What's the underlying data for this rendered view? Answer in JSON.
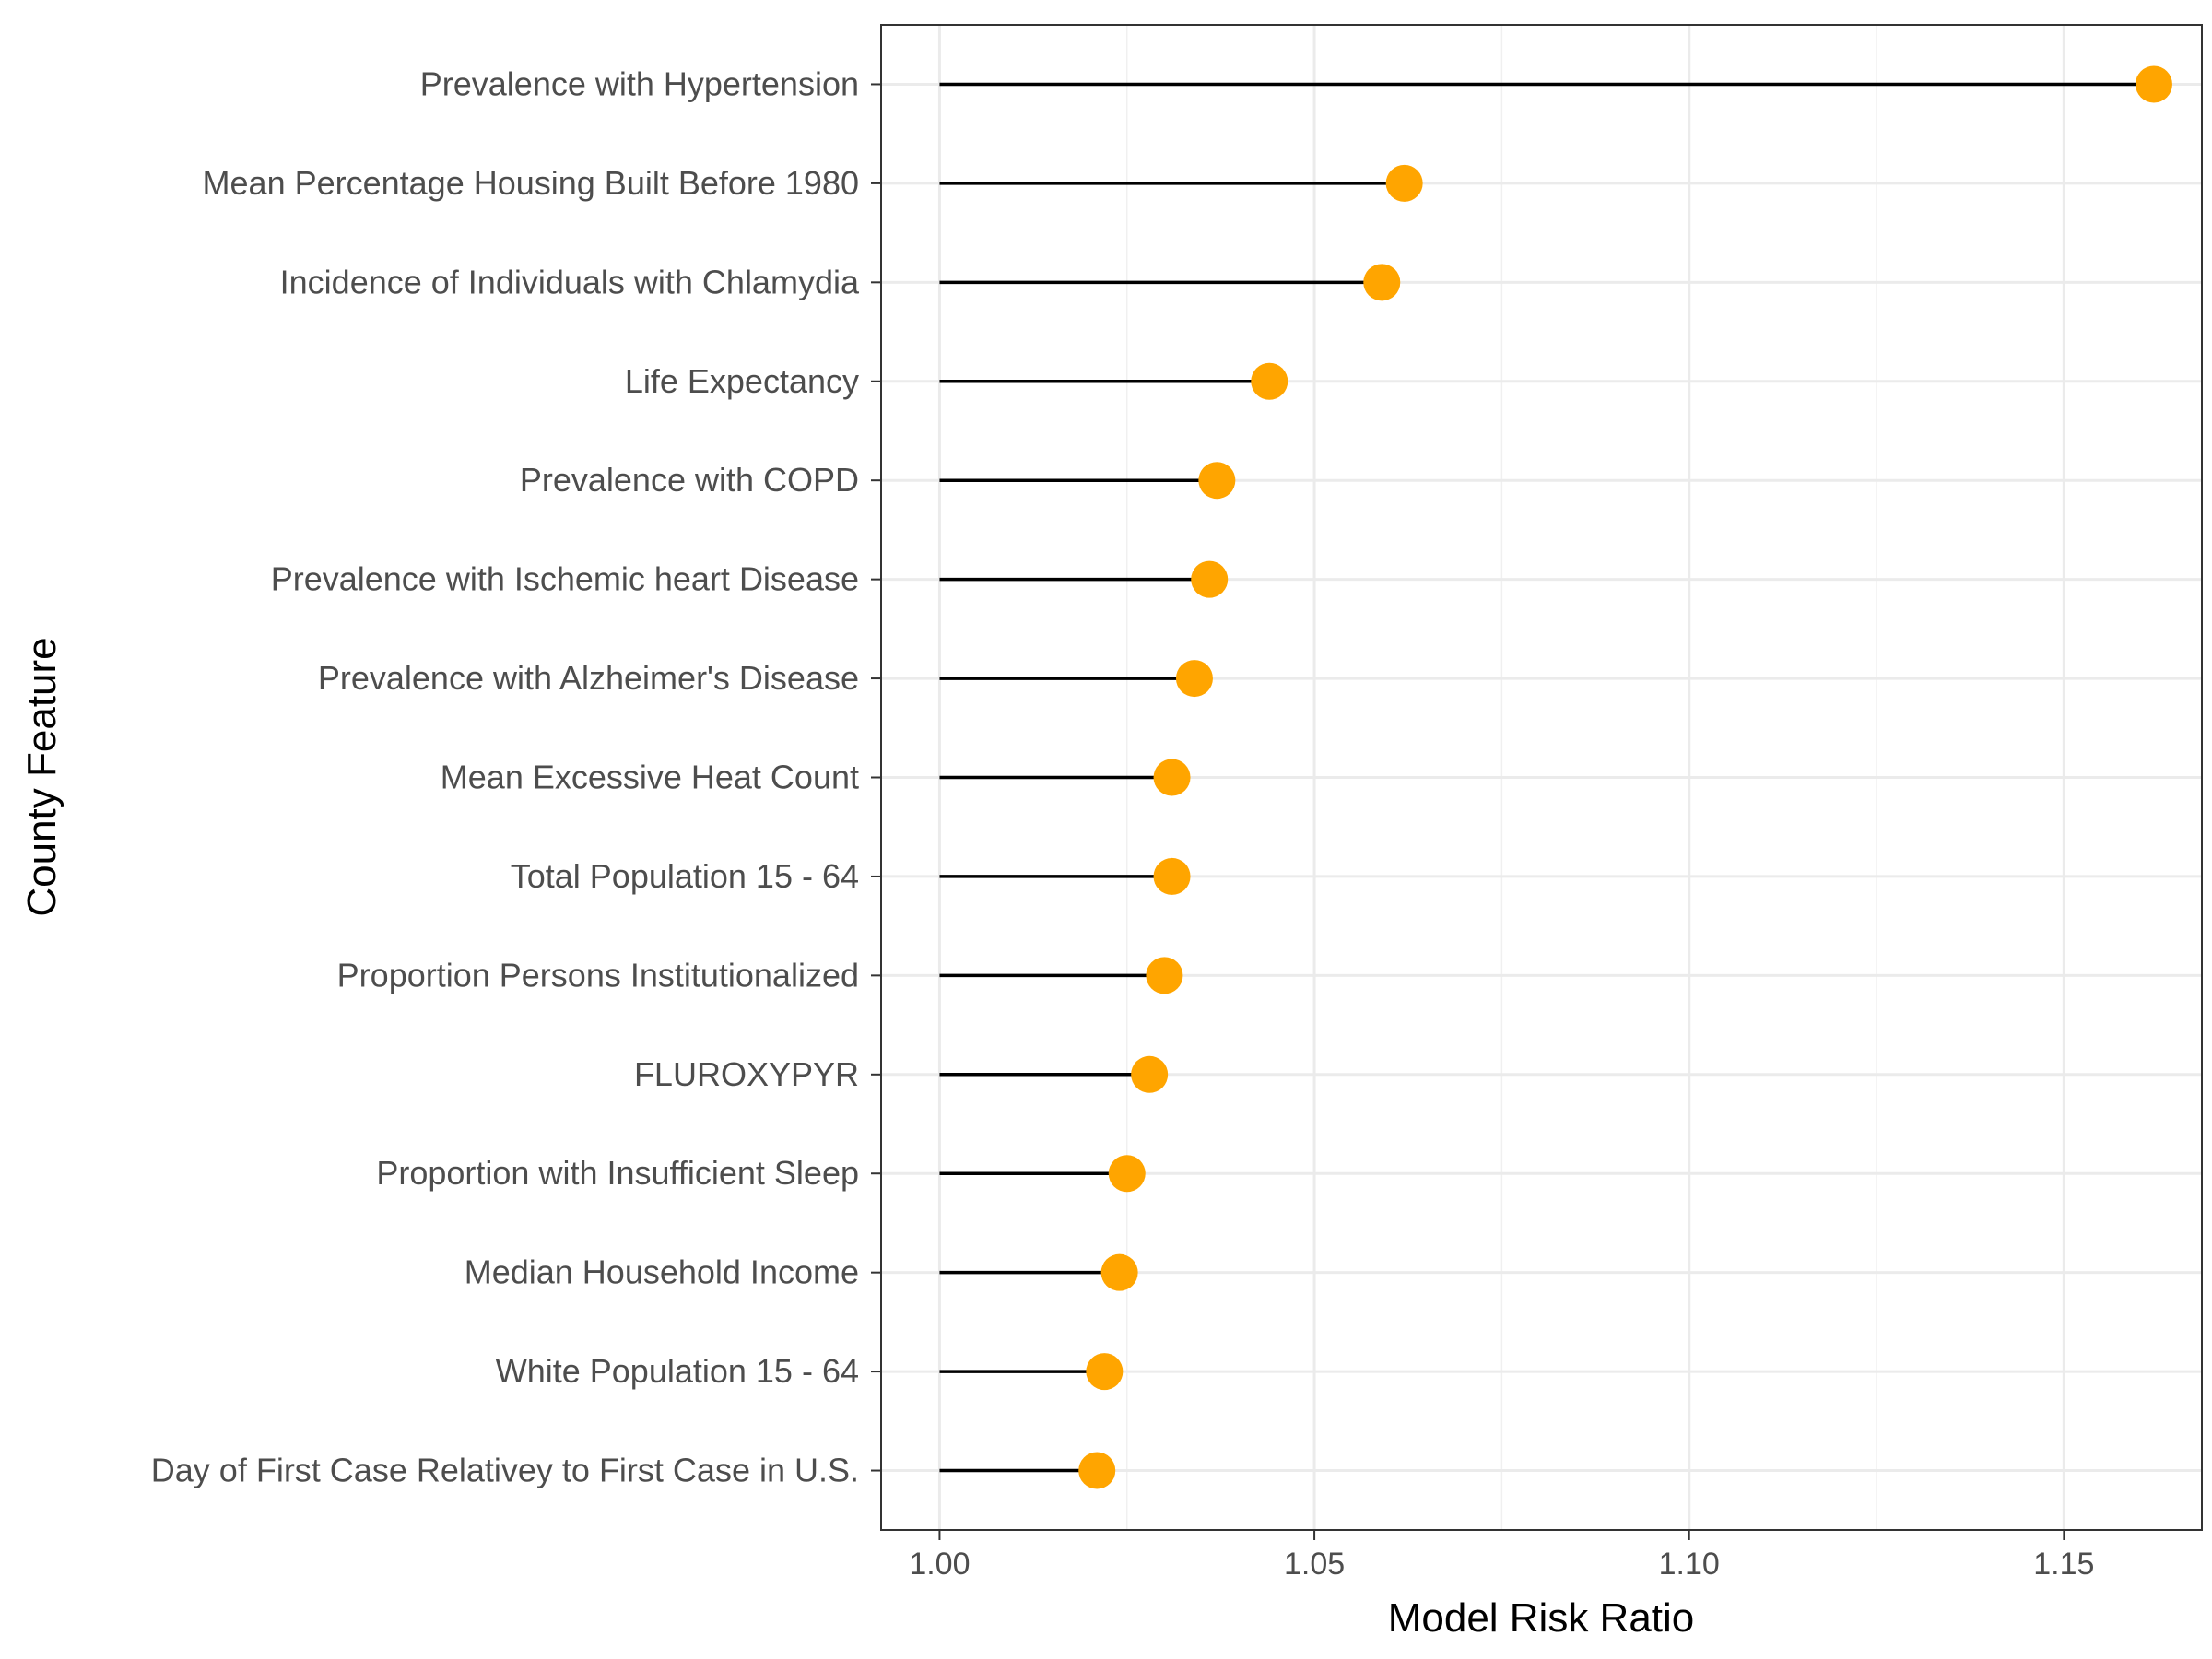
{
  "chart_data": {
    "type": "lollipop",
    "xlabel": "Model Risk Ratio",
    "ylabel": "County Feature",
    "xlim": [
      0.9922,
      1.1684
    ],
    "baseline": 1.0,
    "x_ticks": [
      1.0,
      1.05,
      1.1,
      1.15
    ],
    "x_tick_labels": [
      "1.00",
      "1.05",
      "1.10",
      "1.15"
    ],
    "grid": true,
    "point_color": "#FFA500",
    "stem_color": "#000000",
    "categories": [
      "Prevalence with Hypertension",
      "Mean Percentage Housing Built Before 1980",
      "Incidence of Individuals with Chlamydia",
      "Life Expectancy",
      "Prevalence with COPD",
      "Prevalence with Ischemic heart Disease",
      "Prevalence with Alzheimer's Disease",
      "Mean Excessive Heat Count",
      "Total Population 15 - 64",
      "Proportion Persons Institutionalized",
      "FLUROXYPYR",
      "Proportion with Insufficient Sleep",
      "Median Household Income",
      "White Population 15 - 64",
      "Day of First Case Relativey to First Case in U.S."
    ],
    "values": [
      1.162,
      1.062,
      1.059,
      1.044,
      1.037,
      1.036,
      1.034,
      1.031,
      1.031,
      1.03,
      1.028,
      1.025,
      1.024,
      1.022,
      1.021
    ]
  }
}
